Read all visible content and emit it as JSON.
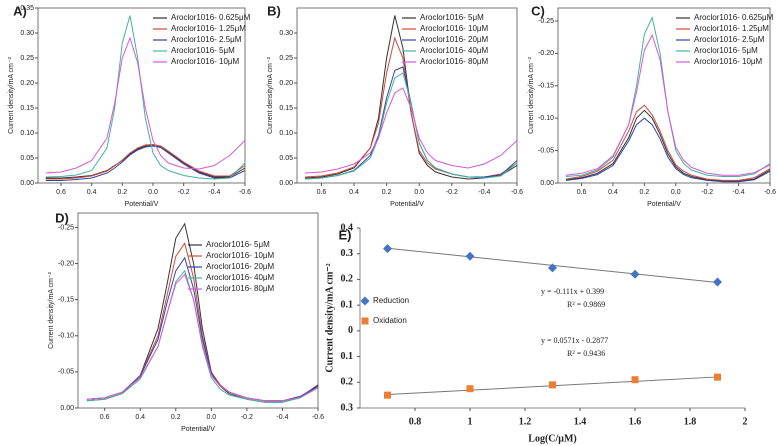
{
  "chart_data": [
    {
      "type": "line",
      "panel": "A)",
      "xlabel": "Potential/V",
      "ylabel": "Current density/mA cm⁻²",
      "x": [
        0.7,
        0.6,
        0.5,
        0.4,
        0.3,
        0.25,
        0.2,
        0.15,
        0.1,
        0.05,
        0,
        -0.05,
        -0.1,
        -0.2,
        -0.3,
        -0.4,
        -0.5,
        -0.6
      ],
      "xlim": [
        0.75,
        -0.6
      ],
      "xticks": [
        0.6,
        0.4,
        0.2,
        {
          "value": 0,
          "label": "0.0"
        },
        -0.2,
        -0.4,
        -0.6
      ],
      "ylim": [
        0,
        0.35
      ],
      "yticks": [
        {
          "value": 0,
          "label": "0.00"
        },
        0.05,
        {
          "value": 0.1,
          "label": "0.10"
        },
        0.15,
        {
          "value": 0.2,
          "label": "0.20"
        },
        0.25,
        {
          "value": 0.3,
          "label": "0.30"
        },
        0.35
      ],
      "series": [
        {
          "name": "Aroclor1016- 0.625μM",
          "color": "#333333",
          "values": [
            0.01,
            0.01,
            0.012,
            0.015,
            0.025,
            0.035,
            0.045,
            0.058,
            0.068,
            0.074,
            0.075,
            0.072,
            0.062,
            0.04,
            0.022,
            0.012,
            0.012,
            0.03
          ]
        },
        {
          "name": "Aroclor1016- 1.25μM",
          "color": "#d04a3a",
          "values": [
            0.008,
            0.008,
            0.01,
            0.014,
            0.024,
            0.034,
            0.046,
            0.06,
            0.07,
            0.076,
            0.077,
            0.074,
            0.064,
            0.042,
            0.024,
            0.014,
            0.014,
            0.035
          ]
        },
        {
          "name": "Aroclor1016- 2.5μM",
          "color": "#3344aa",
          "values": [
            0.005,
            0.005,
            0.007,
            0.01,
            0.02,
            0.03,
            0.042,
            0.056,
            0.066,
            0.072,
            0.074,
            0.071,
            0.06,
            0.038,
            0.02,
            0.01,
            0.01,
            0.025
          ]
        },
        {
          "name": "Aroclor1016- 5μM",
          "color": "#45b39d",
          "values": [
            0.012,
            0.013,
            0.016,
            0.025,
            0.07,
            0.15,
            0.28,
            0.335,
            0.25,
            0.13,
            0.06,
            0.035,
            0.025,
            0.015,
            0.01,
            0.008,
            0.01,
            0.04
          ]
        },
        {
          "name": "Aroclor1016- 10μM",
          "color": "#d65ad6",
          "values": [
            0.02,
            0.022,
            0.03,
            0.045,
            0.09,
            0.16,
            0.25,
            0.29,
            0.24,
            0.15,
            0.085,
            0.055,
            0.04,
            0.03,
            0.028,
            0.035,
            0.055,
            0.085
          ]
        }
      ]
    },
    {
      "type": "line",
      "panel": "B)",
      "xlabel": "Potential/V",
      "ylabel": "Current density/mA cm⁻²",
      "x": [
        0.7,
        0.6,
        0.5,
        0.4,
        0.3,
        0.25,
        0.2,
        0.15,
        0.1,
        0.05,
        0,
        -0.05,
        -0.1,
        -0.2,
        -0.3,
        -0.4,
        -0.5,
        -0.6
      ],
      "xlim": [
        0.75,
        -0.6
      ],
      "xticks": [
        0.6,
        0.4,
        0.2,
        {
          "value": 0,
          "label": "0.0"
        },
        -0.2,
        -0.4,
        -0.6
      ],
      "ylim": [
        0,
        0.35
      ],
      "yticks": [
        {
          "value": 0,
          "label": "0.00"
        },
        0.05,
        {
          "value": 0.1,
          "label": "0.10"
        },
        0.15,
        {
          "value": 0.2,
          "label": "0.20"
        },
        0.25,
        {
          "value": 0.3,
          "label": "0.30"
        }
      ],
      "series": [
        {
          "name": "Aroclor1016- 5μM",
          "color": "#333333",
          "values": [
            0.01,
            0.012,
            0.018,
            0.03,
            0.07,
            0.13,
            0.25,
            0.335,
            0.27,
            0.14,
            0.06,
            0.035,
            0.022,
            0.012,
            0.008,
            0.01,
            0.015,
            0.035
          ]
        },
        {
          "name": "Aroclor1016- 10μM",
          "color": "#d04a3a",
          "values": [
            0.012,
            0.014,
            0.02,
            0.032,
            0.07,
            0.12,
            0.22,
            0.29,
            0.25,
            0.14,
            0.065,
            0.04,
            0.028,
            0.018,
            0.012,
            0.012,
            0.018,
            0.04
          ]
        },
        {
          "name": "Aroclor1016- 20μM",
          "color": "#3344aa",
          "values": [
            0.008,
            0.01,
            0.015,
            0.025,
            0.055,
            0.095,
            0.17,
            0.225,
            0.232,
            0.16,
            0.08,
            0.045,
            0.03,
            0.018,
            0.012,
            0.012,
            0.016,
            0.045
          ]
        },
        {
          "name": "Aroclor1016- 40μM",
          "color": "#45b39d",
          "values": [
            0.008,
            0.01,
            0.015,
            0.024,
            0.05,
            0.09,
            0.16,
            0.21,
            0.22,
            0.16,
            0.08,
            0.045,
            0.03,
            0.018,
            0.012,
            0.01,
            0.014,
            0.04
          ]
        },
        {
          "name": "Aroclor1016- 80μM",
          "color": "#d65ad6",
          "values": [
            0.02,
            0.022,
            0.028,
            0.038,
            0.06,
            0.09,
            0.14,
            0.18,
            0.19,
            0.15,
            0.09,
            0.06,
            0.045,
            0.035,
            0.03,
            0.038,
            0.055,
            0.085
          ]
        }
      ]
    },
    {
      "type": "line",
      "panel": "C)",
      "xlabel": "Potential/V",
      "ylabel": "Current density/mA cm⁻²",
      "x": [
        0.7,
        0.6,
        0.5,
        0.4,
        0.3,
        0.25,
        0.2,
        0.15,
        0.1,
        0.05,
        0,
        -0.05,
        -0.1,
        -0.2,
        -0.3,
        -0.4,
        -0.5,
        -0.6
      ],
      "xlim": [
        0.75,
        -0.6
      ],
      "xticks": [
        0.6,
        0.4,
        0.2,
        {
          "value": 0,
          "label": "0.0"
        },
        -0.2,
        -0.4,
        -0.6
      ],
      "ylim": [
        0,
        -0.27
      ],
      "yticks": [
        {
          "value": 0,
          "label": "0.00"
        },
        -0.05,
        {
          "value": -0.1,
          "label": "-0.10"
        },
        -0.15,
        {
          "value": -0.2,
          "label": "-0.20"
        },
        -0.25
      ],
      "series": [
        {
          "name": "Aroclor1016- 0.625μM",
          "color": "#333333",
          "values": [
            -0.005,
            -0.008,
            -0.015,
            -0.03,
            -0.07,
            -0.1,
            -0.112,
            -0.1,
            -0.075,
            -0.045,
            -0.025,
            -0.015,
            -0.01,
            -0.005,
            -0.003,
            -0.003,
            -0.006,
            -0.02
          ]
        },
        {
          "name": "Aroclor1016- 1.25μM",
          "color": "#d04a3a",
          "values": [
            -0.006,
            -0.01,
            -0.018,
            -0.035,
            -0.08,
            -0.11,
            -0.12,
            -0.105,
            -0.08,
            -0.05,
            -0.028,
            -0.018,
            -0.012,
            -0.006,
            -0.004,
            -0.004,
            -0.008,
            -0.022
          ]
        },
        {
          "name": "Aroclor1016- 2.5μM",
          "color": "#3344aa",
          "values": [
            -0.004,
            -0.007,
            -0.013,
            -0.027,
            -0.065,
            -0.09,
            -0.1,
            -0.09,
            -0.068,
            -0.04,
            -0.022,
            -0.013,
            -0.008,
            -0.004,
            -0.002,
            -0.002,
            -0.005,
            -0.018
          ]
        },
        {
          "name": "Aroclor1016- 5μM",
          "color": "#45b39d",
          "values": [
            -0.01,
            -0.012,
            -0.02,
            -0.04,
            -0.09,
            -0.15,
            -0.23,
            -0.255,
            -0.2,
            -0.11,
            -0.05,
            -0.03,
            -0.02,
            -0.012,
            -0.01,
            -0.01,
            -0.014,
            -0.03
          ]
        },
        {
          "name": "Aroclor1016- 10μM",
          "color": "#d65ad6",
          "values": [
            -0.012,
            -0.015,
            -0.022,
            -0.042,
            -0.09,
            -0.14,
            -0.205,
            -0.228,
            -0.19,
            -0.11,
            -0.055,
            -0.035,
            -0.024,
            -0.015,
            -0.012,
            -0.012,
            -0.016,
            -0.028
          ]
        }
      ]
    },
    {
      "type": "line",
      "panel": "D)",
      "xlabel": "Potential/V",
      "ylabel": "Current density/mA cm⁻²",
      "x": [
        0.7,
        0.6,
        0.5,
        0.4,
        0.3,
        0.25,
        0.2,
        0.15,
        0.1,
        0.05,
        0,
        -0.05,
        -0.1,
        -0.2,
        -0.3,
        -0.4,
        -0.5,
        -0.6
      ],
      "xlim": [
        0.75,
        -0.6
      ],
      "xticks": [
        0.6,
        0.4,
        0.2,
        {
          "value": 0,
          "label": "0.0"
        },
        -0.2,
        -0.4,
        -0.6
      ],
      "ylim": [
        0,
        -0.27
      ],
      "yticks": [
        {
          "value": 0,
          "label": "0.00"
        },
        -0.05,
        {
          "value": -0.1,
          "label": "-0.10"
        },
        -0.15,
        {
          "value": -0.2,
          "label": "-0.20"
        },
        -0.25
      ],
      "series": [
        {
          "name": "Aroclor1016- 5μM",
          "color": "#333333",
          "values": [
            -0.01,
            -0.012,
            -0.02,
            -0.045,
            -0.11,
            -0.17,
            -0.235,
            -0.255,
            -0.2,
            -0.11,
            -0.05,
            -0.03,
            -0.02,
            -0.012,
            -0.008,
            -0.008,
            -0.015,
            -0.032
          ]
        },
        {
          "name": "Aroclor1016- 10μM",
          "color": "#d04a3a",
          "values": [
            -0.012,
            -0.014,
            -0.022,
            -0.045,
            -0.1,
            -0.155,
            -0.21,
            -0.228,
            -0.18,
            -0.1,
            -0.05,
            -0.032,
            -0.022,
            -0.014,
            -0.01,
            -0.01,
            -0.016,
            -0.03
          ]
        },
        {
          "name": "Aroclor1016- 20μM",
          "color": "#3344aa",
          "values": [
            -0.012,
            -0.014,
            -0.022,
            -0.044,
            -0.095,
            -0.145,
            -0.19,
            -0.208,
            -0.165,
            -0.095,
            -0.048,
            -0.03,
            -0.022,
            -0.014,
            -0.01,
            -0.01,
            -0.016,
            -0.03
          ]
        },
        {
          "name": "Aroclor1016- 40μM",
          "color": "#45b39d",
          "values": [
            -0.01,
            -0.012,
            -0.02,
            -0.04,
            -0.085,
            -0.13,
            -0.175,
            -0.19,
            -0.15,
            -0.085,
            -0.042,
            -0.026,
            -0.018,
            -0.012,
            -0.008,
            -0.008,
            -0.014,
            -0.028
          ]
        },
        {
          "name": "Aroclor1016- 80μM",
          "color": "#d65ad6",
          "values": [
            -0.012,
            -0.014,
            -0.022,
            -0.042,
            -0.085,
            -0.13,
            -0.172,
            -0.185,
            -0.15,
            -0.088,
            -0.045,
            -0.03,
            -0.022,
            -0.014,
            -0.01,
            -0.01,
            -0.015,
            -0.028
          ]
        }
      ]
    },
    {
      "type": "scatter",
      "panel": "E)",
      "xlabel": "Log(C/μM)",
      "ylabel": "Current density/mA cm⁻²",
      "x": [
        0.7,
        1,
        1.3,
        1.6,
        1.9
      ],
      "xlim": [
        0.6,
        2
      ],
      "xticks": [
        0.8,
        1,
        1.2,
        1.4,
        1.6,
        1.8,
        2
      ],
      "ylim": [
        -0.3,
        0.4
      ],
      "yticks": [
        {
          "value": -0.3,
          "label": "0.3"
        },
        {
          "value": -0.2,
          "label": "0.2"
        },
        {
          "value": -0.1,
          "label": "0.1"
        },
        0,
        0.1,
        0.2,
        0.3,
        0.4
      ],
      "series": [
        {
          "name": "Reduction",
          "color": "#4472c4",
          "marker": "diamond",
          "values": [
            0.32,
            0.29,
            0.245,
            0.22,
            0.19
          ]
        },
        {
          "name": "Oxidation",
          "color": "#ed7d31",
          "marker": "square",
          "values": [
            -0.25,
            -0.225,
            -0.21,
            -0.19,
            -0.18
          ]
        }
      ],
      "trendlines": [
        {
          "x": [
            0.7,
            1.9
          ],
          "values": [
            0.3213,
            0.1881
          ],
          "color": "#777777"
        },
        {
          "x": [
            0.7,
            1.9
          ],
          "values": [
            -0.2477,
            -0.1792
          ],
          "color": "#777777"
        }
      ],
      "annotations": [
        "y = -0.111x + 0.399",
        "R² = 0.9869",
        "y = 0.0571x - 0.2877",
        "R² = 0.9436"
      ]
    }
  ]
}
